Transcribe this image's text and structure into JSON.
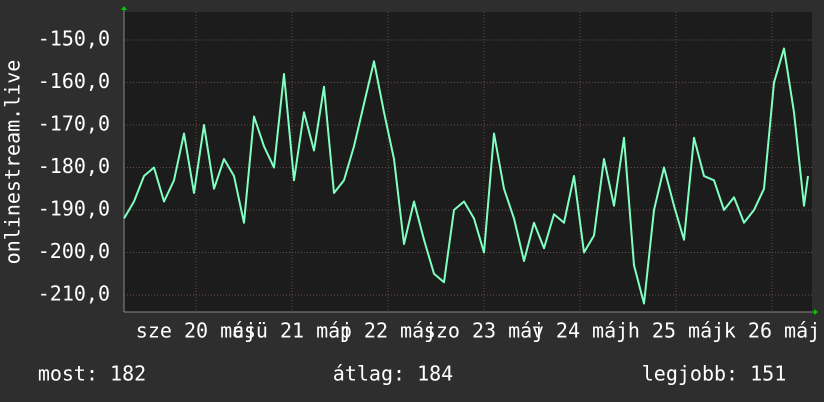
{
  "chart_data": {
    "type": "line",
    "y_label": "onlinestream.live",
    "x": [
      -18,
      -15.5,
      -13,
      -10.5,
      -8,
      -5.5,
      -3,
      -0.5,
      2,
      4.5,
      7,
      9.5,
      12,
      14.5,
      17,
      19.5,
      22,
      24.5,
      27,
      29.5,
      32,
      34.5,
      37,
      39.5,
      42,
      44.5,
      47,
      49.5,
      52,
      54.5,
      57,
      59.5,
      62,
      64.5,
      67,
      69.5,
      72,
      74.5,
      77,
      79.5,
      82,
      84.5,
      87,
      89.5,
      92,
      94.5,
      97,
      99.5,
      102,
      104.5,
      107,
      109.5,
      112,
      114.5,
      117,
      119.5,
      122,
      124.5,
      127,
      129.5,
      132,
      134.5,
      137,
      139.5,
      142,
      144.5,
      147,
      149.5,
      152,
      153
    ],
    "series": [
      {
        "name": "onlinestream.live",
        "color": "#80ffc0",
        "values": [
          -192,
          -188,
          -182,
          -180,
          -188,
          -183,
          -172,
          -186,
          -170,
          -185,
          -178,
          -182,
          -193,
          -168,
          -175,
          -180,
          -158,
          -183,
          -167,
          -176,
          -161,
          -186,
          -183,
          -175,
          -165,
          -155,
          -167,
          -178,
          -198,
          -188,
          -197,
          -205,
          -207,
          -190,
          -188,
          -192,
          -200,
          -172,
          -185,
          -192,
          -202,
          -193,
          -199,
          -191,
          -193,
          -182,
          -200,
          -196,
          -178,
          -189,
          -173,
          -203,
          -212,
          -190,
          -180,
          -189,
          -197,
          -173,
          -182,
          -183,
          -190,
          -187,
          -193,
          -190,
          -185,
          -160,
          -152,
          -167,
          -189,
          -182
        ]
      }
    ],
    "xlim": [
      -18,
      154
    ],
    "xticks": [
      {
        "value": 0,
        "label": "sze 20 máj"
      },
      {
        "value": 24,
        "label": "csü 21 máj"
      },
      {
        "value": 48,
        "label": "p 22 máj"
      },
      {
        "value": 72,
        "label": "szo 23 máj"
      },
      {
        "value": 96,
        "label": "v 24 máj"
      },
      {
        "value": 120,
        "label": "h 25 máj"
      },
      {
        "value": 144,
        "label": "k 26 máj"
      }
    ],
    "ylim": [
      -214,
      -143.4
    ],
    "yticks": [
      {
        "value": -210,
        "label": "-210,0"
      },
      {
        "value": -200,
        "label": "-200,0"
      },
      {
        "value": -190,
        "label": "-190,0"
      },
      {
        "value": -180,
        "label": "-180,0"
      },
      {
        "value": -170,
        "label": "-170,0"
      },
      {
        "value": -160,
        "label": "-160,0"
      },
      {
        "value": -150,
        "label": "-150,0"
      }
    ],
    "grid": true,
    "stats": [
      "most: 182",
      "átlag: 184",
      "legjobb: 151"
    ]
  }
}
